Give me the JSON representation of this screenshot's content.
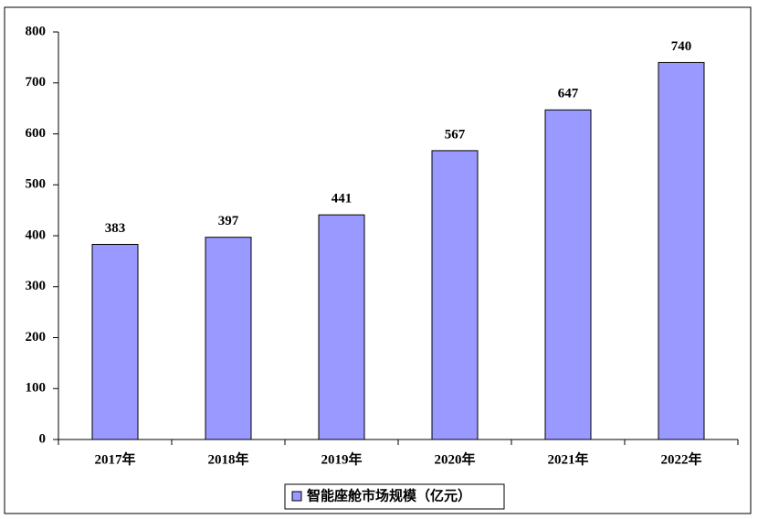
{
  "chart_data": {
    "type": "bar",
    "categories": [
      "2017年",
      "2018年",
      "2019年",
      "2020年",
      "2021年",
      "2022年"
    ],
    "series": [
      {
        "name": "智能座舱市场规模（亿元）",
        "color": "#9999ff",
        "values": [
          383,
          397,
          441,
          567,
          647,
          740
        ]
      }
    ],
    "ylim": [
      0,
      800
    ],
    "yticks": [
      0,
      100,
      200,
      300,
      400,
      500,
      600,
      700,
      800
    ],
    "grid": false,
    "legend": "bottom"
  }
}
